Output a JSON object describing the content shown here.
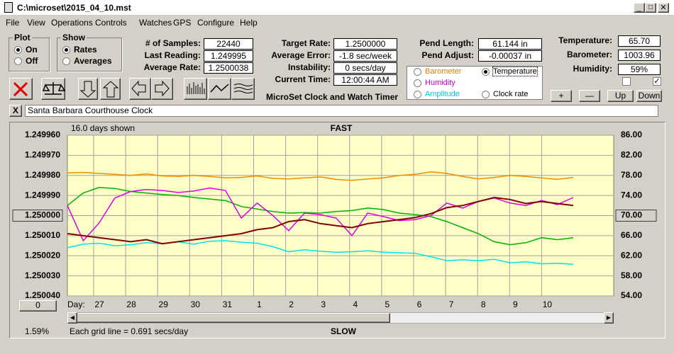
{
  "window": {
    "title": "C:\\microset\\2015_04_10.mst"
  },
  "menu": [
    "File",
    "View",
    "Operations",
    "Controls",
    "Watches",
    "GPS",
    "Configure",
    "Help"
  ],
  "plot_group": {
    "title": "Plot",
    "options": [
      "On",
      "Off"
    ],
    "selected_index": 0
  },
  "show_group": {
    "title": "Show",
    "options": [
      "Rates",
      "Averages"
    ],
    "selected_index": 0
  },
  "fields": [
    {
      "label": "# of Samples:",
      "value": "22440"
    },
    {
      "label": "Last Reading:",
      "value": "1.249995"
    },
    {
      "label": "Average Rate:",
      "value": "1.2500038"
    },
    {
      "label": "Target Rate:",
      "value": "1.2500000"
    },
    {
      "label": "Average Error:",
      "value": "-1.8 sec/week"
    },
    {
      "label": "Instability:",
      "value": "0 secs/day"
    },
    {
      "label": "Current Time:",
      "value": "12:00:44 AM"
    },
    {
      "label": "Pend Length:",
      "value": "61.144 in"
    },
    {
      "label": "Pend Adjust:",
      "value": "-0.00037 in"
    },
    {
      "label": "Temperature:",
      "value": "65.70"
    },
    {
      "label": "Barometer:",
      "value": "1003.96"
    },
    {
      "label": "Humidity:",
      "value": "59%"
    }
  ],
  "caption": "MicroSet Clock and Watch Timer",
  "plot_select": {
    "options": [
      {
        "label": "Barometer",
        "color": "#e08000"
      },
      {
        "label": "Temperature",
        "color": "#000000"
      },
      {
        "label": "Humidity",
        "color": "#d000d0"
      },
      {
        "label": "Amplitude",
        "color": "#00c8e8"
      },
      {
        "label": "Clock rate",
        "color": "#000000"
      }
    ],
    "selected_index": 1
  },
  "checkboxes": [
    false,
    true
  ],
  "buttons": [
    "+",
    "—",
    "Up",
    "Down"
  ],
  "close_button": "X",
  "description": "Santa Barbara Courthouse Clock",
  "chart": {
    "type": "line",
    "title": "FAST",
    "subtitle": "16.0 days shown",
    "bottom_label": "SLOW",
    "footer": "Each grid line = 0.691 secs/day",
    "status": "1.59%",
    "x_label": "Day:",
    "reset_button": "0",
    "grid": true,
    "categories": [
      "27",
      "28",
      "29",
      "30",
      "31",
      "1",
      "2",
      "3",
      "4",
      "5",
      "6",
      "7",
      "8",
      "9",
      "10"
    ],
    "ylim": [
      1.25004,
      1.24996
    ],
    "yticks": [
      {
        "value": 1.24996,
        "label": "1.249960"
      },
      {
        "value": 1.24997,
        "label": "1.249970"
      },
      {
        "value": 1.24998,
        "label": "1.249980"
      },
      {
        "value": 1.24999,
        "label": "1.249990"
      },
      {
        "value": 1.25,
        "label": "1.250000"
      },
      {
        "value": 1.25001,
        "label": "1.250010"
      },
      {
        "value": 1.25002,
        "label": "1.250020"
      },
      {
        "value": 1.25003,
        "label": "1.250030"
      },
      {
        "value": 1.25004,
        "label": "1.250040"
      }
    ],
    "y2lim": [
      54,
      86
    ],
    "y2ticks": [
      {
        "value": 86,
        "label": "86.00"
      },
      {
        "value": 82,
        "label": "82.00"
      },
      {
        "value": 78,
        "label": "78.00"
      },
      {
        "value": 74,
        "label": "74.00"
      },
      {
        "value": 70,
        "label": "70.00"
      },
      {
        "value": 66,
        "label": "66.00"
      },
      {
        "value": 62,
        "label": "62.00"
      },
      {
        "value": 58,
        "label": "58.00"
      },
      {
        "value": 54,
        "label": "54.00"
      }
    ],
    "series": [
      {
        "color": "#f08c00",
        "axis": "y2",
        "values": [
          78.5,
          78.6,
          78.4,
          78.2,
          78.0,
          78.3,
          77.9,
          77.8,
          78.0,
          77.8,
          77.5,
          77.6,
          77.9,
          77.4,
          77.3,
          77.5,
          77.7,
          77.2,
          77.0,
          77.3,
          77.5,
          78.0,
          78.2,
          78.7,
          78.4,
          77.8,
          77.3,
          77.6,
          78.0,
          77.8,
          77.5,
          77.2,
          77.6
        ]
      },
      {
        "color": "#00b000",
        "axis": "y2",
        "values": [
          72.0,
          74.5,
          75.6,
          75.4,
          74.8,
          74.5,
          74.2,
          74.0,
          73.6,
          73.3,
          73.0,
          71.8,
          71.3,
          70.8,
          70.5,
          70.6,
          70.5,
          70.8,
          71.0,
          71.5,
          71.2,
          70.5,
          70.2,
          69.8,
          68.8,
          67.6,
          66.4,
          64.8,
          64.2,
          64.6,
          65.6,
          65.2,
          65.6
        ]
      },
      {
        "color": "#e000e0",
        "axis": "y2",
        "values": [
          72.0,
          65.0,
          68.5,
          73.5,
          74.8,
          75.2,
          75.0,
          74.6,
          74.9,
          75.5,
          75.0,
          69.5,
          72.5,
          70.0,
          67.0,
          70.5,
          70.2,
          69.5,
          66.0,
          70.5,
          69.8,
          69.0,
          69.2,
          70.0,
          72.5,
          71.5,
          72.8,
          73.5,
          72.5,
          72.0,
          73.0,
          72.2,
          73.6
        ]
      },
      {
        "color": "#00e0f0",
        "axis": "y2",
        "values": [
          63.6,
          64.3,
          64.5,
          64.0,
          64.2,
          64.6,
          64.4,
          64.8,
          64.3,
          64.9,
          65.0,
          64.7,
          64.5,
          63.8,
          62.8,
          63.2,
          62.9,
          62.7,
          62.8,
          63.0,
          62.7,
          62.6,
          62.5,
          61.8,
          61.0,
          61.2,
          61.0,
          61.3,
          60.6,
          60.8,
          60.4,
          60.5,
          60.3
        ]
      },
      {
        "color": "#800000",
        "values": [
          1.250009,
          1.25001,
          1.250011,
          1.250012,
          1.250013,
          1.250012,
          1.250014,
          1.250013,
          1.250012,
          1.250011,
          1.25001,
          1.250009,
          1.250007,
          1.250006,
          1.250003,
          1.250002,
          1.250004,
          1.250005,
          1.250006,
          1.250004,
          1.250003,
          1.250002,
          1.250001,
          1.249999,
          1.249996,
          1.249995,
          1.249993,
          1.249991,
          1.249992,
          1.249994,
          1.249993,
          1.249994,
          1.249995
        ]
      }
    ]
  }
}
